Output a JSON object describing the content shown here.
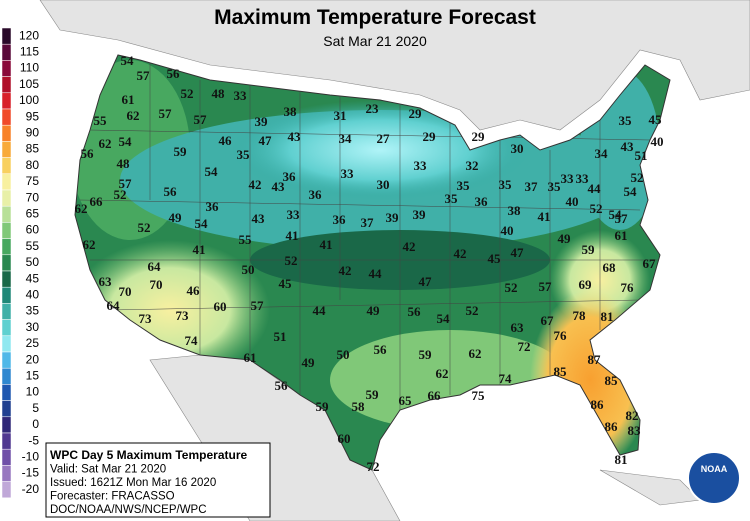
{
  "header": {
    "title": "Maximum Temperature Forecast",
    "subtitle": "Sat Mar 21 2020"
  },
  "legend": {
    "labels": [
      120,
      115,
      110,
      105,
      100,
      95,
      90,
      85,
      80,
      75,
      70,
      65,
      60,
      55,
      50,
      45,
      40,
      35,
      30,
      25,
      20,
      15,
      10,
      5,
      0,
      -5,
      -10,
      -15,
      -20
    ],
    "colors": [
      "#2a0a2a",
      "#5a0a3a",
      "#8a0a3a",
      "#b0102a",
      "#d8202a",
      "#f04a2a",
      "#f8822a",
      "#f8aa3a",
      "#f8d060",
      "#f8f0a0",
      "#e8f0a8",
      "#b8e098",
      "#80c878",
      "#48a860",
      "#2a8850",
      "#1a6848",
      "#208878",
      "#40b0a8",
      "#60d0d0",
      "#90e8f0",
      "#50b8e8",
      "#3088d0",
      "#2058b0",
      "#204090",
      "#302878",
      "#503890",
      "#7050a8",
      "#9878c0",
      "#c0a8d8"
    ]
  },
  "info_box": {
    "lines": [
      "WPC Day 5 Maximum Temperature",
      "Valid: Sat Mar 21 2020",
      "Issued: 1621Z Mon Mar 16 2020",
      "Forecaster: FRACASSO",
      "DOC/NOAA/NWS/NCEP/WPC"
    ]
  },
  "logo": "NOAA",
  "map_labels": [
    54,
    57,
    56,
    61,
    52,
    48,
    33,
    55,
    57,
    62,
    57,
    39,
    38,
    31,
    23,
    29,
    54,
    59,
    46,
    47,
    43,
    34,
    27,
    29,
    29,
    56,
    62,
    48,
    35,
    33,
    33,
    32,
    30,
    35,
    45,
    40,
    54,
    36,
    30,
    35,
    35,
    37,
    35,
    33,
    33,
    34,
    43,
    51,
    57,
    56,
    42,
    43,
    36,
    44,
    54,
    52,
    62,
    66,
    52,
    49,
    36,
    33,
    35,
    36,
    38,
    40,
    52,
    54,
    52,
    54,
    43,
    36,
    37,
    39,
    39,
    41,
    57,
    62,
    41,
    55,
    41,
    41,
    42,
    42,
    45,
    47,
    40,
    49,
    59,
    61,
    64,
    50,
    52,
    42,
    44,
    47,
    68,
    67,
    63,
    70,
    70,
    46,
    45,
    52,
    57,
    69,
    76,
    64,
    60,
    57,
    44,
    49,
    56,
    54,
    52,
    78,
    81,
    73,
    73,
    63,
    67,
    74,
    51,
    76,
    72,
    61,
    49,
    50,
    56,
    59,
    62,
    87,
    56,
    62,
    74,
    85,
    85,
    59,
    58,
    59,
    65,
    66,
    75,
    86,
    82,
    60,
    86,
    83,
    72,
    81
  ]
}
